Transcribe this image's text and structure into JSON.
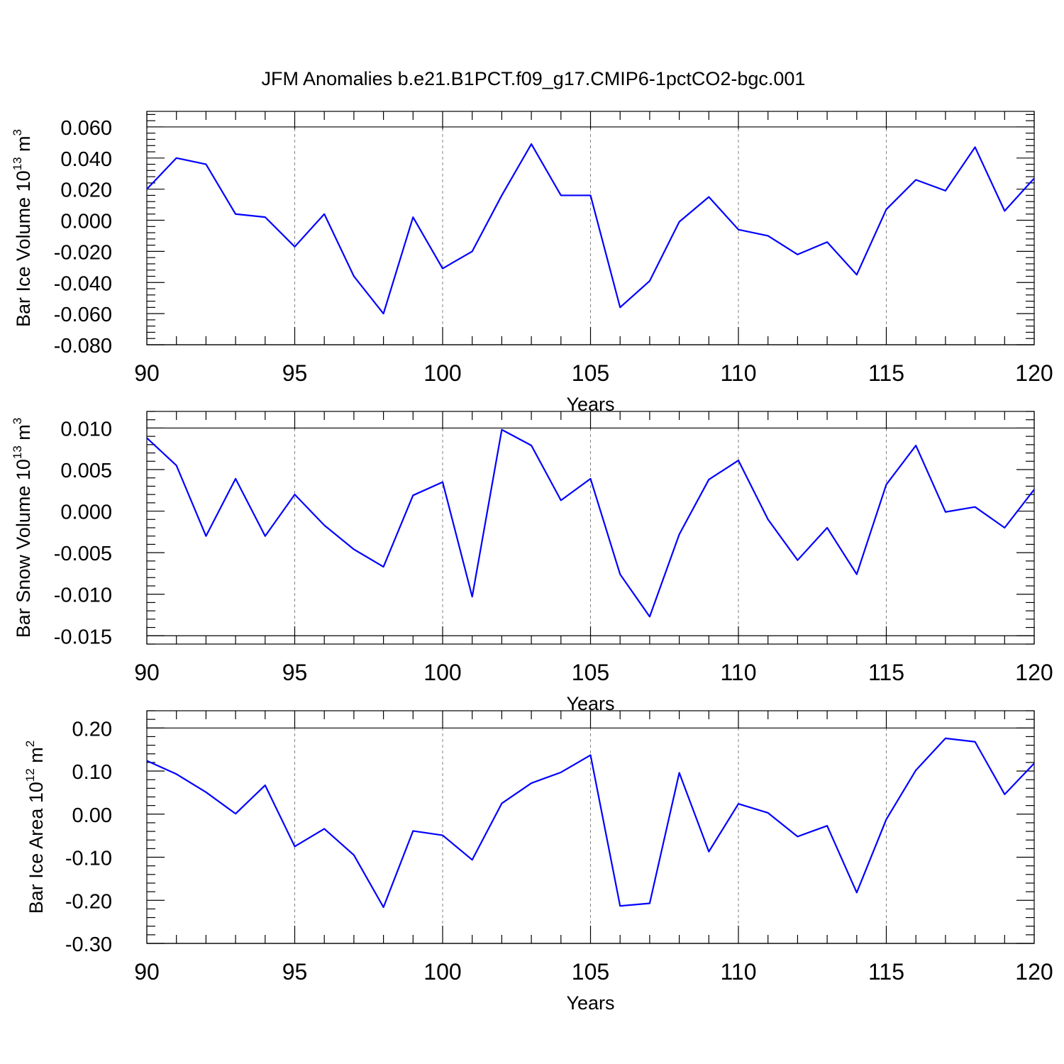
{
  "figure": {
    "title": "JFM Anomalies b.e21.B1PCT.f09_g17.CMIP6-1pctCO2-bgc.001",
    "line_color": "#0000ff"
  },
  "chart_data": [
    {
      "type": "line",
      "ylabel_main": "Bar Ice Volume 10",
      "ylabel_exp": "13",
      "ylabel_unit": " m",
      "ylabel_unit_exp": "3",
      "xlabel": "Years",
      "xlim": [
        90,
        120
      ],
      "ylim": [
        -0.08,
        0.07
      ],
      "y_major_ticks": [
        -0.08,
        -0.06,
        -0.04,
        -0.02,
        0.0,
        0.02,
        0.04,
        0.06
      ],
      "y_tick_labels": [
        "-0.080",
        "-0.060",
        "-0.040",
        "-0.020",
        "0.000",
        "0.020",
        "0.040",
        "0.060"
      ],
      "y_minor_step": 0.004,
      "x_major_ticks": [
        90,
        95,
        100,
        105,
        110,
        115,
        120
      ],
      "x_tick_labels": [
        "90",
        "95",
        "100",
        "105",
        "110",
        "115",
        "120"
      ],
      "x_minor_step": 1,
      "grid": "vertical dashed at major x ticks",
      "x": [
        90,
        91,
        92,
        93,
        94,
        95,
        96,
        97,
        98,
        99,
        100,
        101,
        102,
        103,
        104,
        105,
        106,
        107,
        108,
        109,
        110,
        111,
        112,
        113,
        114,
        115,
        116,
        117,
        118,
        119,
        120
      ],
      "series": [
        {
          "values": [
            0.02,
            0.04,
            0.036,
            0.004,
            0.002,
            -0.017,
            0.004,
            -0.036,
            -0.06,
            0.002,
            -0.031,
            -0.02,
            0.016,
            0.049,
            0.016,
            0.016,
            -0.056,
            -0.039,
            -0.001,
            0.015,
            -0.006,
            -0.01,
            -0.022,
            -0.014,
            -0.035,
            0.007,
            0.026,
            0.019,
            0.047,
            0.006,
            0.027
          ]
        }
      ]
    },
    {
      "type": "line",
      "ylabel_main": "Bar Snow Volume 10",
      "ylabel_exp": "13",
      "ylabel_unit": " m",
      "ylabel_unit_exp": "3",
      "xlabel": "Years",
      "xlim": [
        90,
        120
      ],
      "ylim": [
        -0.016,
        0.012
      ],
      "y_major_ticks": [
        -0.015,
        -0.01,
        -0.005,
        0.0,
        0.005,
        0.01
      ],
      "y_tick_labels": [
        "-0.015",
        "-0.010",
        "-0.005",
        "0.000",
        "0.005",
        "0.010"
      ],
      "y_minor_step": 0.001,
      "x_major_ticks": [
        90,
        95,
        100,
        105,
        110,
        115,
        120
      ],
      "x_tick_labels": [
        "90",
        "95",
        "100",
        "105",
        "110",
        "115",
        "120"
      ],
      "x_minor_step": 1,
      "grid": "vertical dashed at major x ticks",
      "x": [
        90,
        91,
        92,
        93,
        94,
        95,
        96,
        97,
        98,
        99,
        100,
        101,
        102,
        103,
        104,
        105,
        106,
        107,
        108,
        109,
        110,
        111,
        112,
        113,
        114,
        115,
        116,
        117,
        118,
        119,
        120
      ],
      "series": [
        {
          "values": [
            0.0088,
            0.0055,
            -0.003,
            0.0039,
            -0.003,
            0.002,
            -0.0017,
            -0.0046,
            -0.0067,
            0.0019,
            0.0035,
            -0.0103,
            0.0098,
            0.0079,
            0.0013,
            0.0039,
            -0.0076,
            -0.0127,
            -0.0028,
            0.0038,
            0.0061,
            -0.001,
            -0.0059,
            -0.002,
            -0.0076,
            0.0032,
            0.0079,
            -0.0001,
            0.0005,
            -0.002,
            0.0026
          ]
        }
      ]
    },
    {
      "type": "line",
      "ylabel_main": "Bar Ice Area 10",
      "ylabel_exp": "12",
      "ylabel_unit": " m",
      "ylabel_unit_exp": "2",
      "xlabel": "Years",
      "xlim": [
        90,
        120
      ],
      "ylim": [
        -0.3,
        0.24
      ],
      "y_major_ticks": [
        -0.3,
        -0.2,
        -0.1,
        0.0,
        0.1,
        0.2
      ],
      "y_tick_labels": [
        "-0.30",
        "-0.20",
        "-0.10",
        "0.00",
        "0.10",
        "0.20"
      ],
      "y_minor_step": 0.02,
      "x_major_ticks": [
        90,
        95,
        100,
        105,
        110,
        115,
        120
      ],
      "x_tick_labels": [
        "90",
        "95",
        "100",
        "105",
        "110",
        "115",
        "120"
      ],
      "x_minor_step": 1,
      "grid": "vertical dashed at major x ticks",
      "x": [
        90,
        91,
        92,
        93,
        94,
        95,
        96,
        97,
        98,
        99,
        100,
        101,
        102,
        103,
        104,
        105,
        106,
        107,
        108,
        109,
        110,
        111,
        112,
        113,
        114,
        115,
        116,
        117,
        118,
        119,
        120
      ],
      "series": [
        {
          "values": [
            0.124,
            0.093,
            0.051,
            0.001,
            0.067,
            -0.075,
            -0.034,
            -0.095,
            -0.216,
            -0.039,
            -0.049,
            -0.106,
            0.025,
            0.072,
            0.097,
            0.137,
            -0.213,
            -0.207,
            0.096,
            -0.087,
            0.024,
            0.003,
            -0.052,
            -0.027,
            -0.182,
            -0.012,
            0.102,
            0.176,
            0.168,
            0.046,
            0.118
          ]
        }
      ]
    }
  ]
}
